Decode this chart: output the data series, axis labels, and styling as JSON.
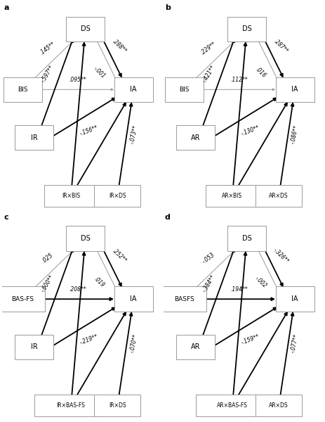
{
  "panels": [
    {
      "label": "a",
      "node_top": "DS",
      "node_left": "BIS",
      "node_right": "IA",
      "node_bl": "IR",
      "node_bm": "IR×BIS",
      "node_br": "IR×DS",
      "coef_left_top": ".145**",
      "coef_left_right": ".095**",
      "coef_bl_top": "-.597**",
      "coef_bl_right": "-.156**",
      "coef_top_right_bold": ".288**",
      "coef_top_right_thin": "-.001",
      "coef_br_right": "-.073**",
      "bold_left_top": false,
      "bold_left_right": false,
      "bold_bl_top": true,
      "bold_bl_right": true,
      "bold_br_right": true,
      "bold_bm_top": true,
      "bold_bm_right": true
    },
    {
      "label": "b",
      "node_top": "DS",
      "node_left": "BIS",
      "node_right": "IA",
      "node_bl": "AR",
      "node_bm": "AR×BIS",
      "node_br": "AR×DS",
      "coef_left_top": ".229**",
      "coef_left_right": ".112**",
      "coef_bl_top": "-.421**",
      "coef_bl_right": "-.130**",
      "coef_top_right_bold": ".287**",
      "coef_top_right_thin": ".016",
      "coef_br_right": "-.086**",
      "bold_left_top": false,
      "bold_left_right": false,
      "bold_bl_top": true,
      "bold_bl_right": true,
      "bold_br_right": true,
      "bold_bm_top": true,
      "bold_bm_right": true
    },
    {
      "label": "c",
      "node_top": "DS",
      "node_left": "BAS-FS",
      "node_right": "IA",
      "node_bl": "IR",
      "node_bm": "IR×BAS-FS",
      "node_br": "IR×DS",
      "coef_left_top": ".025",
      "coef_left_right": ".208**",
      "coef_bl_top": "-.600**",
      "coef_bl_right": "-.219**",
      "coef_top_right_bold": ".252**",
      "coef_top_right_thin": ".019",
      "coef_br_right": "-.070**",
      "bold_left_top": false,
      "bold_left_right": true,
      "bold_bl_top": true,
      "bold_bl_right": true,
      "bold_br_right": true,
      "bold_bm_top": true,
      "bold_bm_right": true
    },
    {
      "label": "d",
      "node_top": "DS",
      "node_left": "BASFS",
      "node_right": "IA",
      "node_bl": "AR",
      "node_bm": "AR×BAS-FS",
      "node_br": "AR×DS",
      "coef_left_top": "-.053",
      "coef_left_right": ".194**",
      "coef_bl_top": "-.384**",
      "coef_bl_right": "-.159**",
      "coef_top_right_bold": "-.326**",
      "coef_top_right_thin": "-.002",
      "coef_br_right": "-.077**",
      "bold_left_top": false,
      "bold_left_right": true,
      "bold_bl_top": true,
      "bold_bl_right": true,
      "bold_br_right": true,
      "bold_bm_top": true,
      "bold_bm_right": true
    }
  ]
}
